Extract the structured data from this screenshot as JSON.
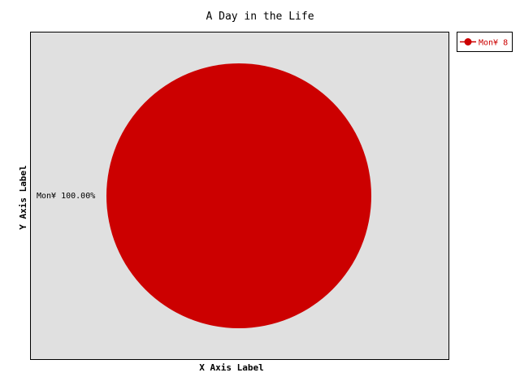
{
  "chart_data": {
    "type": "pie",
    "title": "A Day in the Life",
    "xlabel": "X Axis Label",
    "ylabel": "Y Axis Label",
    "slices": [
      {
        "name": "Mon¥ 8",
        "value": 8,
        "percent_label": "Mon¥ 100.00%",
        "color": "#cc0000"
      }
    ],
    "legend": {
      "position": "top-right",
      "entries": [
        "Mon¥ 8"
      ]
    },
    "plot_background": "#e0e0e0"
  }
}
